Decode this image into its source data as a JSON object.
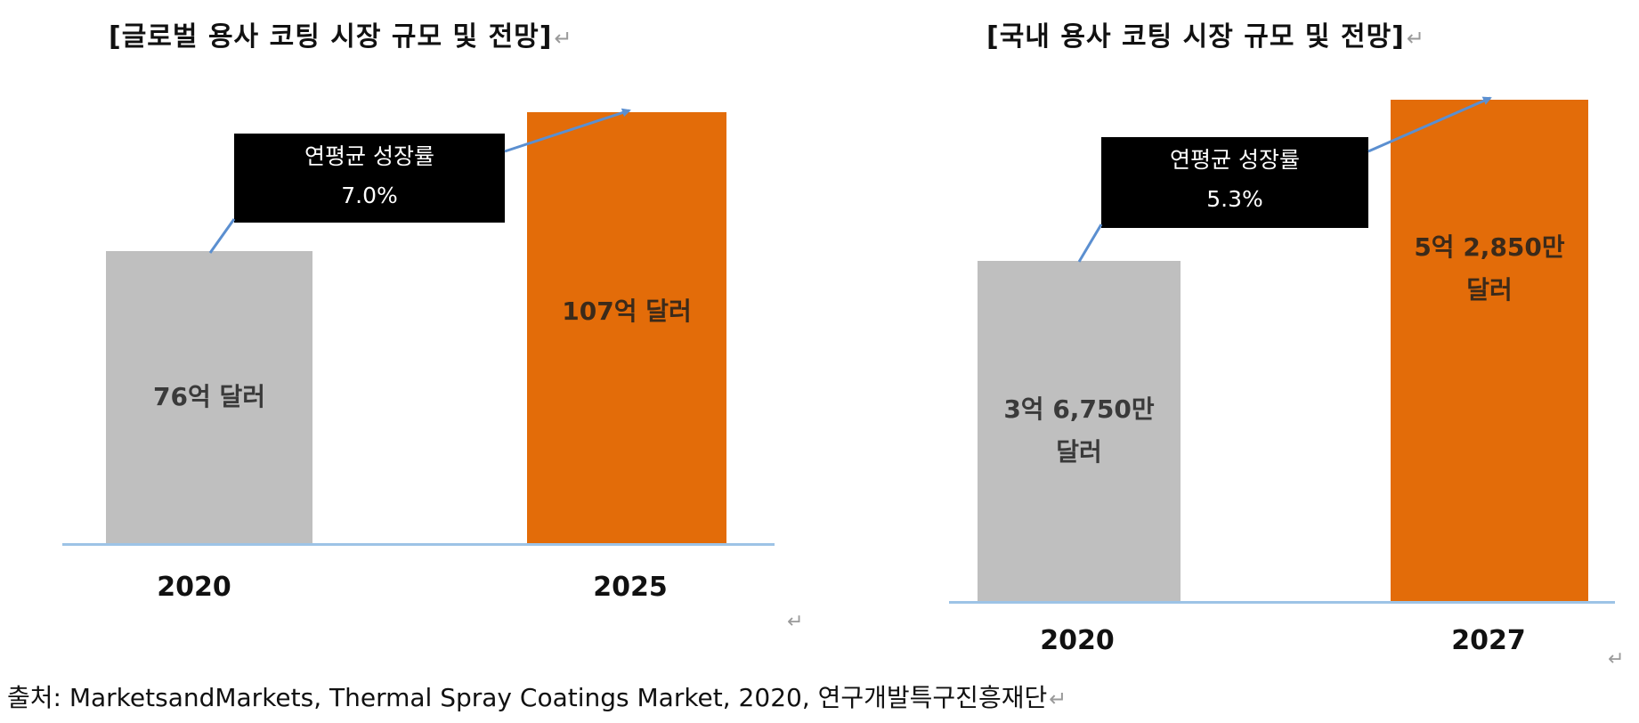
{
  "chart_data": [
    {
      "type": "bar",
      "title": "[글로벌 용사 코팅 시장 규모 및 전망]",
      "categories": [
        "2020",
        "2025"
      ],
      "values": [
        76,
        107
      ],
      "value_labels": [
        "76억 달러",
        "107억 달러"
      ],
      "units": "억 달러",
      "annotation": {
        "line1": "연평균 성장률",
        "line2": "7.0%"
      },
      "colors": [
        "#bfbfbf",
        "#e36c09"
      ]
    },
    {
      "type": "bar",
      "title": "[국내 용사 코팅 시장 규모 및 전망]",
      "categories": [
        "2020",
        "2027"
      ],
      "values": [
        3.675,
        5.285
      ],
      "value_labels": [
        "3억 6,750만\n달러",
        "5억 2,850만\n달러"
      ],
      "units": "억 달러",
      "annotation": {
        "line1": "연평균 성장률",
        "line2": "5.3%"
      },
      "colors": [
        "#bfbfbf",
        "#e36c09"
      ]
    }
  ],
  "paragraph_mark": "↵",
  "source": "출처: MarketsandMarkets, Thermal Spray Coatings Market, 2020, 연구개발특구진흥재단"
}
